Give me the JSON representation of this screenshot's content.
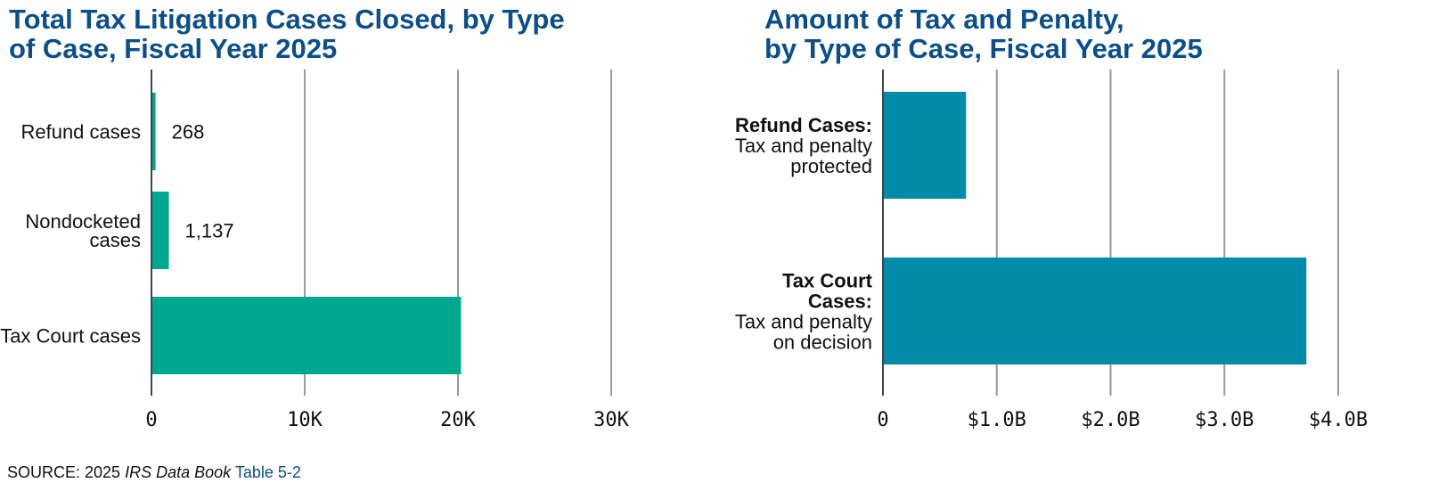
{
  "chart_data": [
    {
      "type": "bar",
      "orientation": "horizontal",
      "title_lines": [
        "Total Tax Litigation Cases Closed, by Type",
        "of Case, Fiscal Year 2025"
      ],
      "categories": [
        {
          "lines": [
            "Refund cases"
          ]
        },
        {
          "lines": [
            "Nondocketed",
            "cases"
          ]
        },
        {
          "lines": [
            "Tax Court cases"
          ]
        }
      ],
      "values": [
        268,
        1137,
        20200
      ],
      "data_labels": [
        "268",
        "1,137",
        ""
      ],
      "xlim": [
        0,
        30000
      ],
      "ticks": [
        0,
        10000,
        20000,
        30000
      ],
      "tick_labels": [
        "0",
        "10K",
        "20K",
        "30K"
      ],
      "bar_color": "#00a88f",
      "grid": true
    },
    {
      "type": "bar",
      "orientation": "horizontal",
      "title_lines": [
        "Amount of Tax and Penalty,",
        "by Type of Case, Fiscal Year 2025"
      ],
      "categories": [
        {
          "bold_lines": [
            "Refund Cases:"
          ],
          "lines": [
            "Tax and penalty",
            "protected"
          ]
        },
        {
          "bold_lines": [
            "Tax Court",
            "Cases:"
          ],
          "lines": [
            "Tax and penalty",
            "on decision"
          ]
        }
      ],
      "values": [
        0.73,
        3.72
      ],
      "unit": "$ billions",
      "xlim": [
        0,
        4
      ],
      "ticks": [
        0,
        1,
        2,
        3,
        4
      ],
      "tick_labels": [
        "0",
        "$1.0B",
        "$2.0B",
        "$3.0B",
        "$4.0B"
      ],
      "bar_color": "#008ca8",
      "grid": true
    }
  ],
  "source": {
    "prefix": "SOURCE: 2025 ",
    "publication": "IRS Data Book",
    "table_link": "Table 5-2"
  }
}
